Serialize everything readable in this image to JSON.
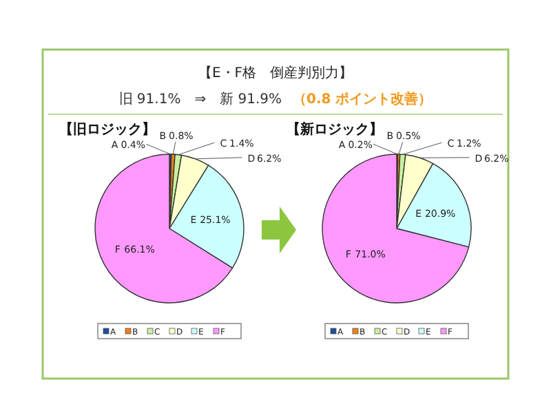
{
  "chart_data": [
    {
      "type": "pie",
      "title": "【旧ロジック】",
      "annotations": [
        "【E・F格　倒産判別力】",
        "旧 91.1%　⇒　新 91.9%",
        "（0.8 ポイント改善）"
      ],
      "categories": [
        "A",
        "B",
        "C",
        "D",
        "E",
        "F"
      ],
      "values": [
        0.4,
        0.8,
        1.4,
        6.2,
        25.1,
        66.1
      ],
      "value_labels": [
        "0.4%",
        "0.8%",
        "1.4%",
        "6.2%",
        "25.1%",
        "66.1%"
      ],
      "colors": [
        "#1f4e9c",
        "#f07f1a",
        "#c8f0a0",
        "#ffffcc",
        "#ccffff",
        "#ff99ff"
      ],
      "legend": "bottom"
    },
    {
      "type": "pie",
      "title": "【新ロジック】",
      "categories": [
        "A",
        "B",
        "C",
        "D",
        "E",
        "F"
      ],
      "values": [
        0.2,
        0.5,
        1.2,
        6.2,
        20.9,
        71.0
      ],
      "value_labels": [
        "0.2%",
        "0.5%",
        "1.2%",
        "6.2%",
        "20.9%",
        "71.0%"
      ],
      "colors": [
        "#1f4e9c",
        "#f07f1a",
        "#c8f0a0",
        "#ffffcc",
        "#ccffff",
        "#ff99ff"
      ],
      "legend": "bottom"
    }
  ]
}
